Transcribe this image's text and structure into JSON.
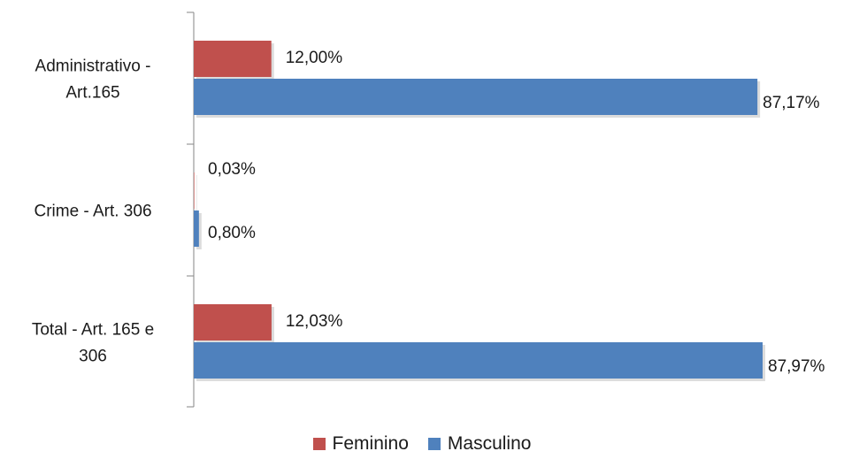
{
  "chart_data": {
    "type": "bar",
    "orientation": "horizontal",
    "categories": [
      [
        "Administrativo -",
        "Art.165"
      ],
      [
        "Crime - Art. 306"
      ],
      [
        "Total - Art. 165 e",
        "306"
      ]
    ],
    "series": [
      {
        "name": "Feminino",
        "color": "#c0504d",
        "values": [
          12.0,
          0.03,
          12.03
        ],
        "labels": [
          "12,00%",
          "0,03%",
          "12,03%"
        ]
      },
      {
        "name": "Masculino",
        "color": "#4f81bd",
        "values": [
          87.17,
          0.8,
          87.97
        ],
        "labels": [
          "87,17%",
          "0,80%",
          "87,97%"
        ]
      }
    ],
    "xlim": [
      0,
      87.97
    ],
    "grid": false,
    "legend_position": "bottom"
  }
}
